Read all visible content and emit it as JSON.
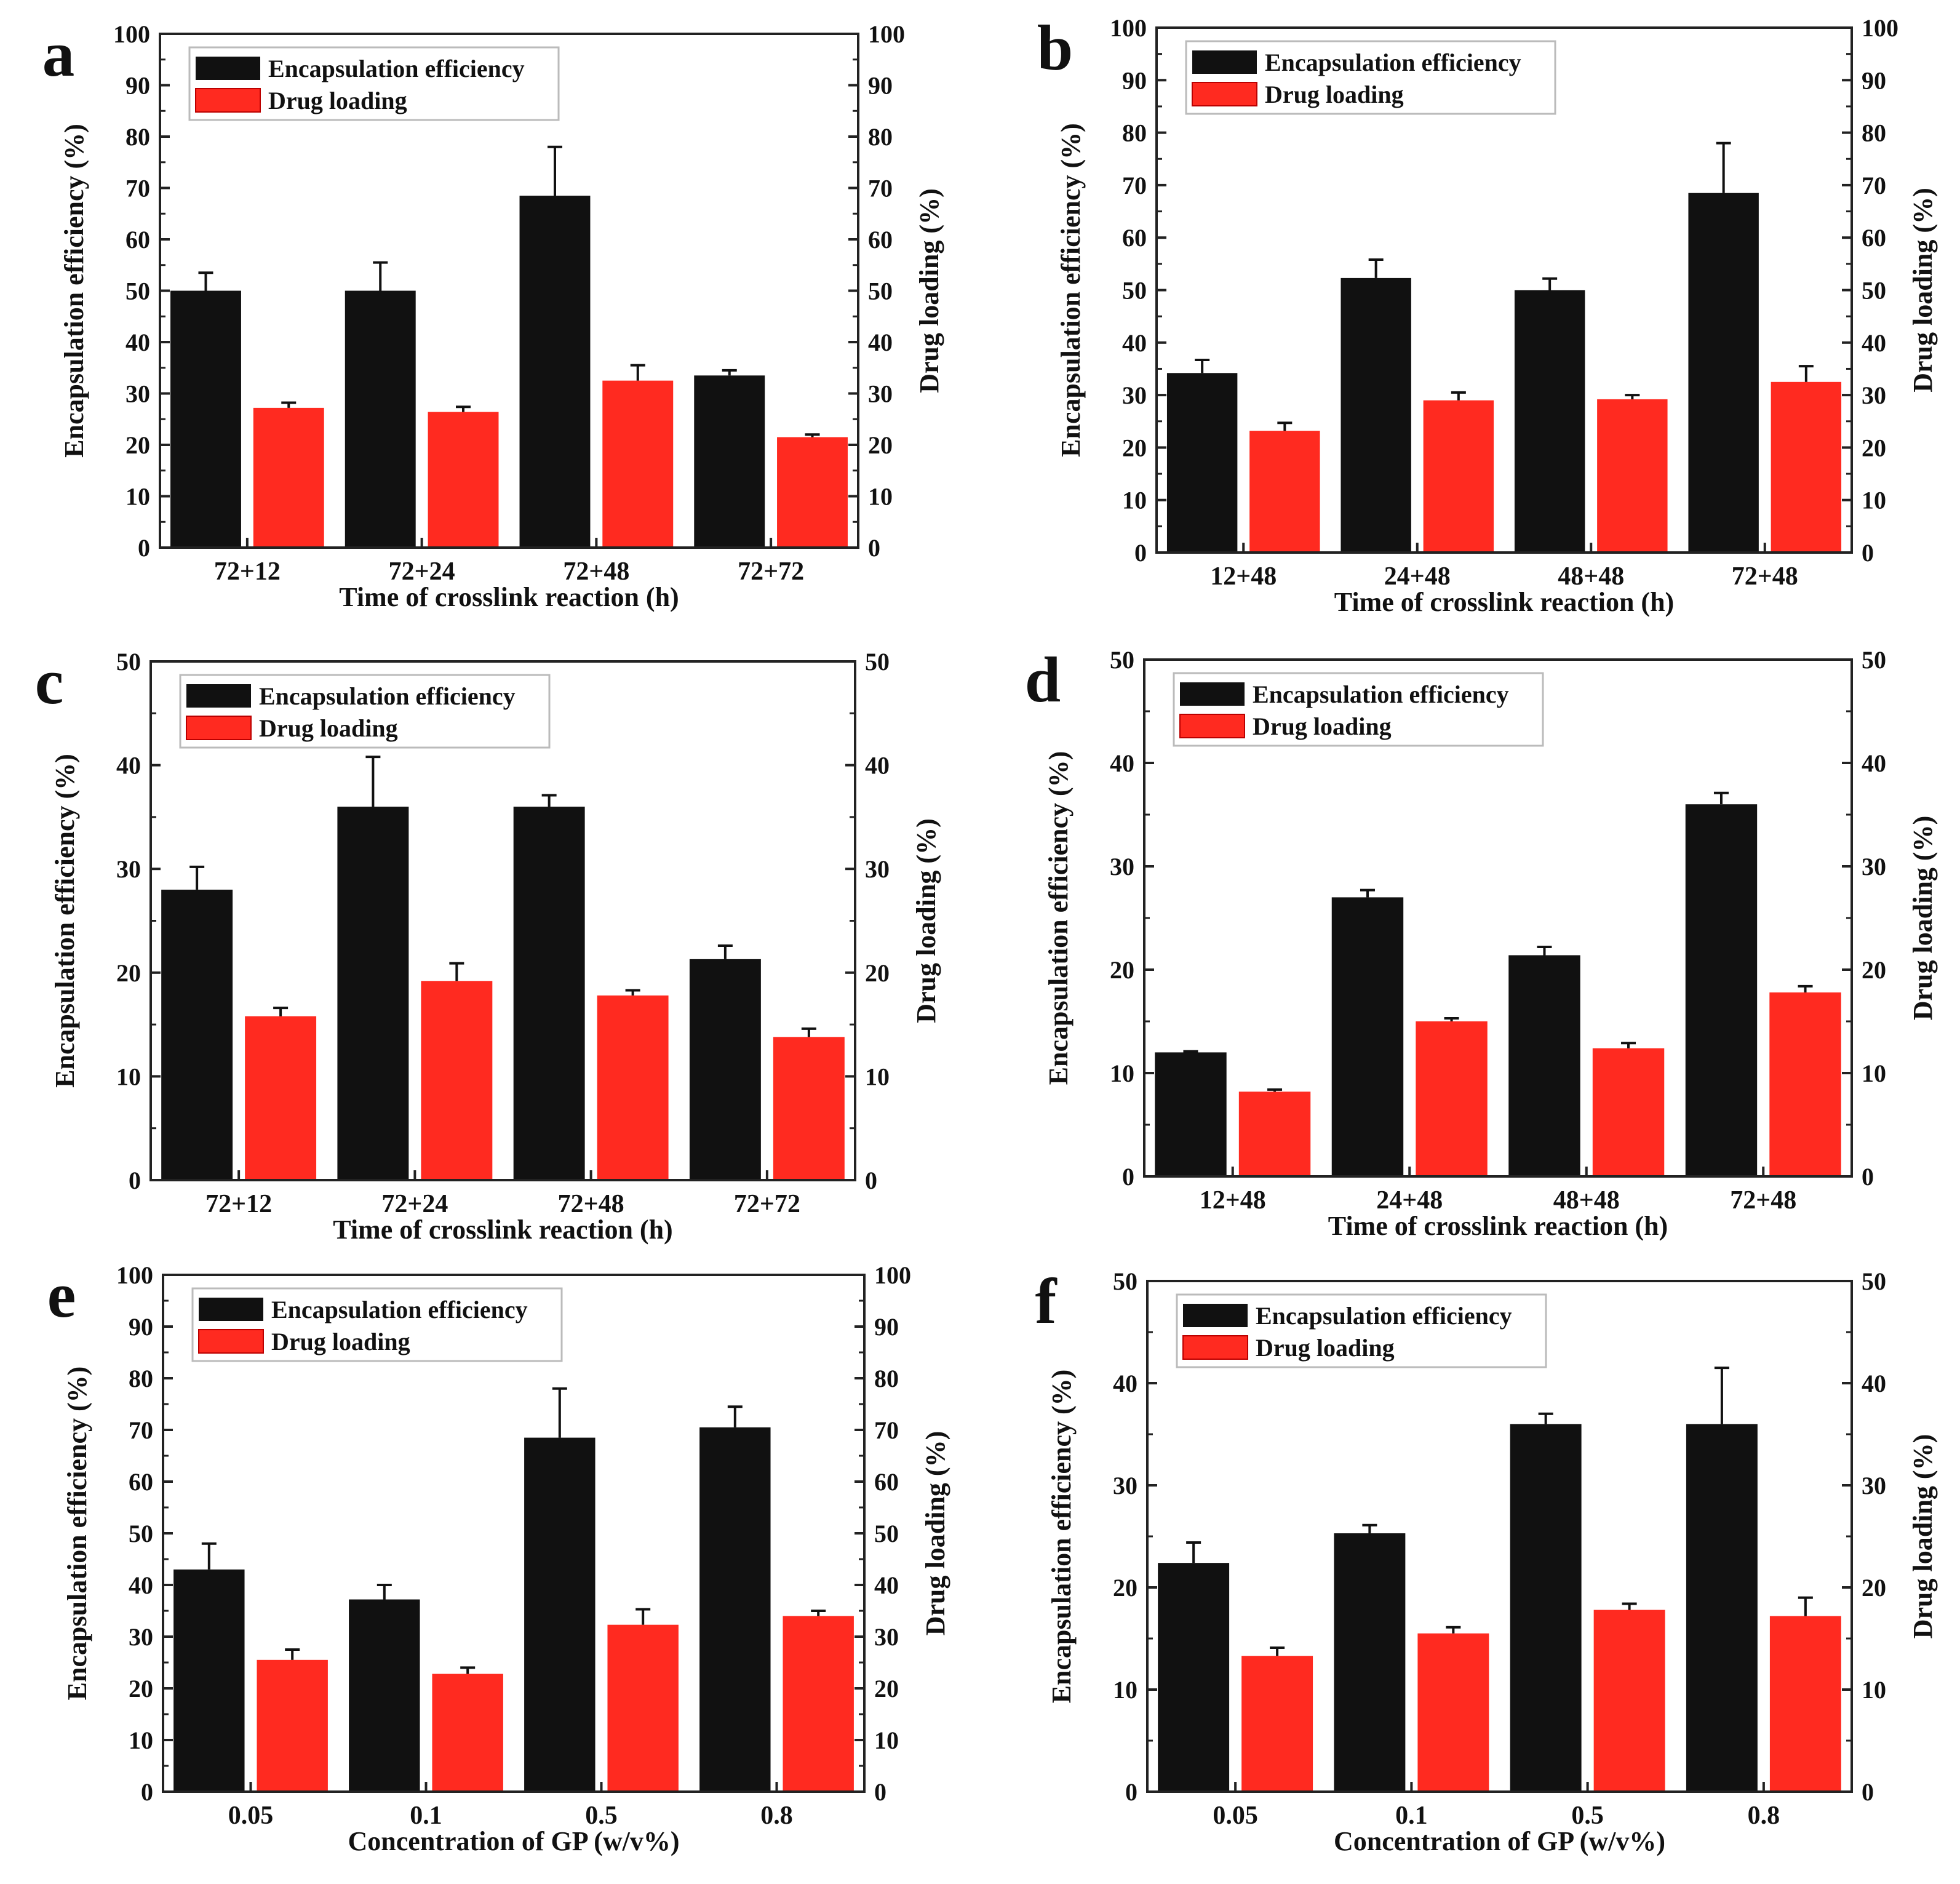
{
  "figure": {
    "series_names": [
      "Encapsulation efficiency",
      "Drug loading"
    ],
    "colors": {
      "ee": "#111111",
      "dl": "#ff2a20",
      "axis": "#222222"
    }
  },
  "chart_data": [
    {
      "panel": "a",
      "type": "bar",
      "categories": [
        "72+12",
        "72+24",
        "72+48",
        "72+72"
      ],
      "series": [
        {
          "name": "Encapsulation efficiency",
          "values": [
            50,
            50,
            68.5,
            33.5
          ],
          "errors": [
            3.5,
            5.5,
            9.5,
            1
          ]
        },
        {
          "name": "Drug loading",
          "values": [
            27.2,
            26.4,
            32.5,
            21.5
          ],
          "errors": [
            1,
            1,
            3,
            0.5
          ]
        }
      ],
      "xlabel": "Time of crosslink reaction (h)",
      "ylabel": "Encapsulation efficiency (%)",
      "y2label": "Drug loading (%)",
      "ylim": [
        0,
        100
      ],
      "yticks": [
        0,
        10,
        20,
        30,
        40,
        50,
        60,
        70,
        80,
        90,
        100
      ],
      "legend": "top-left"
    },
    {
      "panel": "b",
      "type": "bar",
      "categories": [
        "12+48",
        "24+48",
        "48+48",
        "72+48"
      ],
      "series": [
        {
          "name": "Encapsulation efficiency",
          "values": [
            34.2,
            52.3,
            50,
            68.5
          ],
          "errors": [
            2.5,
            3.5,
            2.2,
            9.5
          ]
        },
        {
          "name": "Drug loading",
          "values": [
            23.2,
            29,
            29.2,
            32.5
          ],
          "errors": [
            1.5,
            1.5,
            0.8,
            3
          ]
        }
      ],
      "xlabel": "Time of crosslink reaction (h)",
      "ylabel": "Encapsulation efficiency (%)",
      "y2label": "Drug loading (%)",
      "ylim": [
        0,
        100
      ],
      "yticks": [
        0,
        10,
        20,
        30,
        40,
        50,
        60,
        70,
        80,
        90,
        100
      ],
      "legend": "top-left"
    },
    {
      "panel": "c",
      "type": "bar",
      "categories": [
        "72+12",
        "72+24",
        "72+48",
        "72+72"
      ],
      "series": [
        {
          "name": "Encapsulation efficiency",
          "values": [
            28,
            36,
            36,
            21.3
          ],
          "errors": [
            2.2,
            4.8,
            1.1,
            1.3
          ]
        },
        {
          "name": "Drug loading",
          "values": [
            15.8,
            19.2,
            17.8,
            13.8
          ],
          "errors": [
            0.8,
            1.7,
            0.5,
            0.8
          ]
        }
      ],
      "xlabel": "Time of crosslink reaction (h)",
      "ylabel": "Encapsulation efficiency (%)",
      "y2label": "Drug loading (%)",
      "ylim": [
        0,
        50
      ],
      "yticks": [
        0,
        10,
        20,
        30,
        40,
        50
      ],
      "legend": "top-left"
    },
    {
      "panel": "d",
      "type": "bar",
      "categories": [
        "12+48",
        "24+48",
        "48+48",
        "72+48"
      ],
      "series": [
        {
          "name": "Encapsulation efficiency",
          "values": [
            12,
            27,
            21.4,
            36
          ],
          "errors": [
            0.1,
            0.7,
            0.8,
            1.1
          ]
        },
        {
          "name": "Drug loading",
          "values": [
            8.2,
            15,
            12.4,
            17.8
          ],
          "errors": [
            0.2,
            0.3,
            0.5,
            0.6
          ]
        }
      ],
      "xlabel": "Time of crosslink reaction (h)",
      "ylabel": "Encapsulation efficiency (%)",
      "y2label": "Drug loading (%)",
      "ylim": [
        0,
        50
      ],
      "yticks": [
        0,
        10,
        20,
        30,
        40,
        50
      ],
      "legend": "top-left"
    },
    {
      "panel": "e",
      "type": "bar",
      "categories": [
        "0.05",
        "0.1",
        "0.5",
        "0.8"
      ],
      "series": [
        {
          "name": "Encapsulation efficiency",
          "values": [
            43,
            37.2,
            68.5,
            70.5
          ],
          "errors": [
            5,
            2.8,
            9.5,
            4
          ]
        },
        {
          "name": "Drug loading",
          "values": [
            25.5,
            22.8,
            32.3,
            34
          ],
          "errors": [
            2,
            1.2,
            3,
            1
          ]
        }
      ],
      "xlabel": "Concentration of GP (w/v%)",
      "ylabel": "Encapsulation efficiency (%)",
      "y2label": "Drug loading (%)",
      "ylim": [
        0,
        100
      ],
      "yticks": [
        0,
        10,
        20,
        30,
        40,
        50,
        60,
        70,
        80,
        90,
        100
      ],
      "legend": "top-left"
    },
    {
      "panel": "f",
      "type": "bar",
      "categories": [
        "0.05",
        "0.1",
        "0.5",
        "0.8"
      ],
      "series": [
        {
          "name": "Encapsulation efficiency",
          "values": [
            22.4,
            25.3,
            36,
            36
          ],
          "errors": [
            2,
            0.8,
            1,
            5.5
          ]
        },
        {
          "name": "Drug loading",
          "values": [
            13.3,
            15.5,
            17.8,
            17.2
          ],
          "errors": [
            0.8,
            0.6,
            0.6,
            1.8
          ]
        }
      ],
      "xlabel": "Concentration of GP (w/v%)",
      "ylabel": "Encapsulation efficiency (%)",
      "y2label": "Drug loading (%)",
      "ylim": [
        0,
        50
      ],
      "yticks": [
        0,
        10,
        20,
        30,
        40,
        50
      ],
      "legend": "top-left"
    }
  ]
}
